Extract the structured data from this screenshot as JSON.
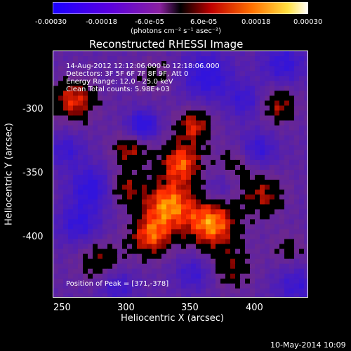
{
  "colorbar": {
    "tick_labels": [
      "-0.00030",
      "-0.00018",
      "-6.0e-05",
      "6.0e-05",
      "0.00018",
      "0.00030"
    ],
    "unit_label": "(photons cm⁻² s⁻¹ asec⁻²)",
    "colors": [
      "#1a00ff",
      "#4a00ff",
      "#8a00b0",
      "#ff0000",
      "#ffb000",
      "#ffffff"
    ]
  },
  "title": "Reconstructed RHESSI Image",
  "overlay": {
    "line1": "14-Aug-2012 12:12:06.000 to 12:18:06.000",
    "line2": "Detectors: 3F 5F 6F 7F 8F 9F, Att 0",
    "line3": "Energy Range: 12.0 - 25.0 keV",
    "line4": "Clean    Total counts: 5.98E+03",
    "peak": "Position of Peak = [371,-378]"
  },
  "axes": {
    "xlabel": "Heliocentric X (arcsec)",
    "ylabel": "Heliocentric Y (arcsec)",
    "xticks": [
      "250",
      "300",
      "350",
      "400"
    ],
    "yticks": [
      "-300",
      "-350",
      "-400"
    ],
    "xlim": [
      243,
      432
    ],
    "ylim": [
      -446,
      -262
    ]
  },
  "footer": "10-May-2014 10:09",
  "chart_data": {
    "type": "heatmap",
    "title": "Reconstructed RHESSI Image",
    "xlabel": "Heliocentric X (arcsec)",
    "ylabel": "Heliocentric Y (arcsec)",
    "xlim": [
      243,
      432
    ],
    "ylim": [
      -446,
      -262
    ],
    "peak": [
      371,
      -378
    ],
    "color_range": [
      -0.0003,
      0.0003
    ]
  }
}
